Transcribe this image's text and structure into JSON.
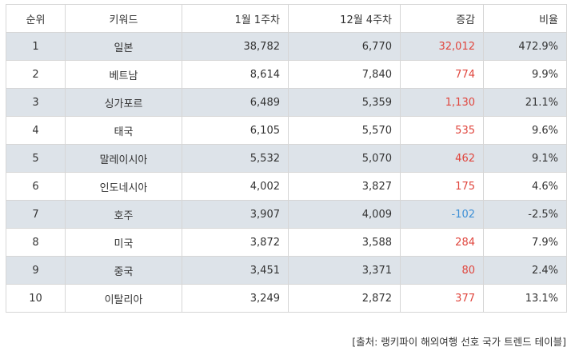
{
  "table": {
    "headers": {
      "rank": "순위",
      "keyword": "키워드",
      "week1": "1월 1주차",
      "week2": "12월 4주차",
      "change": "증감",
      "ratio": "비율"
    },
    "rows": [
      {
        "rank": "1",
        "keyword": "일본",
        "week1": "38,782",
        "week2": "6,770",
        "change": "32,012",
        "ratio": "472.9%",
        "change_sign": "pos"
      },
      {
        "rank": "2",
        "keyword": "베트남",
        "week1": "8,614",
        "week2": "7,840",
        "change": "774",
        "ratio": "9.9%",
        "change_sign": "pos"
      },
      {
        "rank": "3",
        "keyword": "싱가포르",
        "week1": "6,489",
        "week2": "5,359",
        "change": "1,130",
        "ratio": "21.1%",
        "change_sign": "pos"
      },
      {
        "rank": "4",
        "keyword": "태국",
        "week1": "6,105",
        "week2": "5,570",
        "change": "535",
        "ratio": "9.6%",
        "change_sign": "pos"
      },
      {
        "rank": "5",
        "keyword": "말레이시아",
        "week1": "5,532",
        "week2": "5,070",
        "change": "462",
        "ratio": "9.1%",
        "change_sign": "pos"
      },
      {
        "rank": "6",
        "keyword": "인도네시아",
        "week1": "4,002",
        "week2": "3,827",
        "change": "175",
        "ratio": "4.6%",
        "change_sign": "pos"
      },
      {
        "rank": "7",
        "keyword": "호주",
        "week1": "3,907",
        "week2": "4,009",
        "change": "-102",
        "ratio": "-2.5%",
        "change_sign": "neg"
      },
      {
        "rank": "8",
        "keyword": "미국",
        "week1": "3,872",
        "week2": "3,588",
        "change": "284",
        "ratio": "7.9%",
        "change_sign": "pos"
      },
      {
        "rank": "9",
        "keyword": "중국",
        "week1": "3,451",
        "week2": "3,371",
        "change": "80",
        "ratio": "2.4%",
        "change_sign": "pos"
      },
      {
        "rank": "10",
        "keyword": "이탈리아",
        "week1": "3,249",
        "week2": "2,872",
        "change": "377",
        "ratio": "13.1%",
        "change_sign": "pos"
      }
    ]
  },
  "colors": {
    "stripe": "#dde3e9",
    "border": "#d6d6d6",
    "positive": "#e0453d",
    "negative": "#3d8fd6"
  },
  "source": "[출처: 랭키파이 해외여행 선호 국가 트렌드 테이블]"
}
